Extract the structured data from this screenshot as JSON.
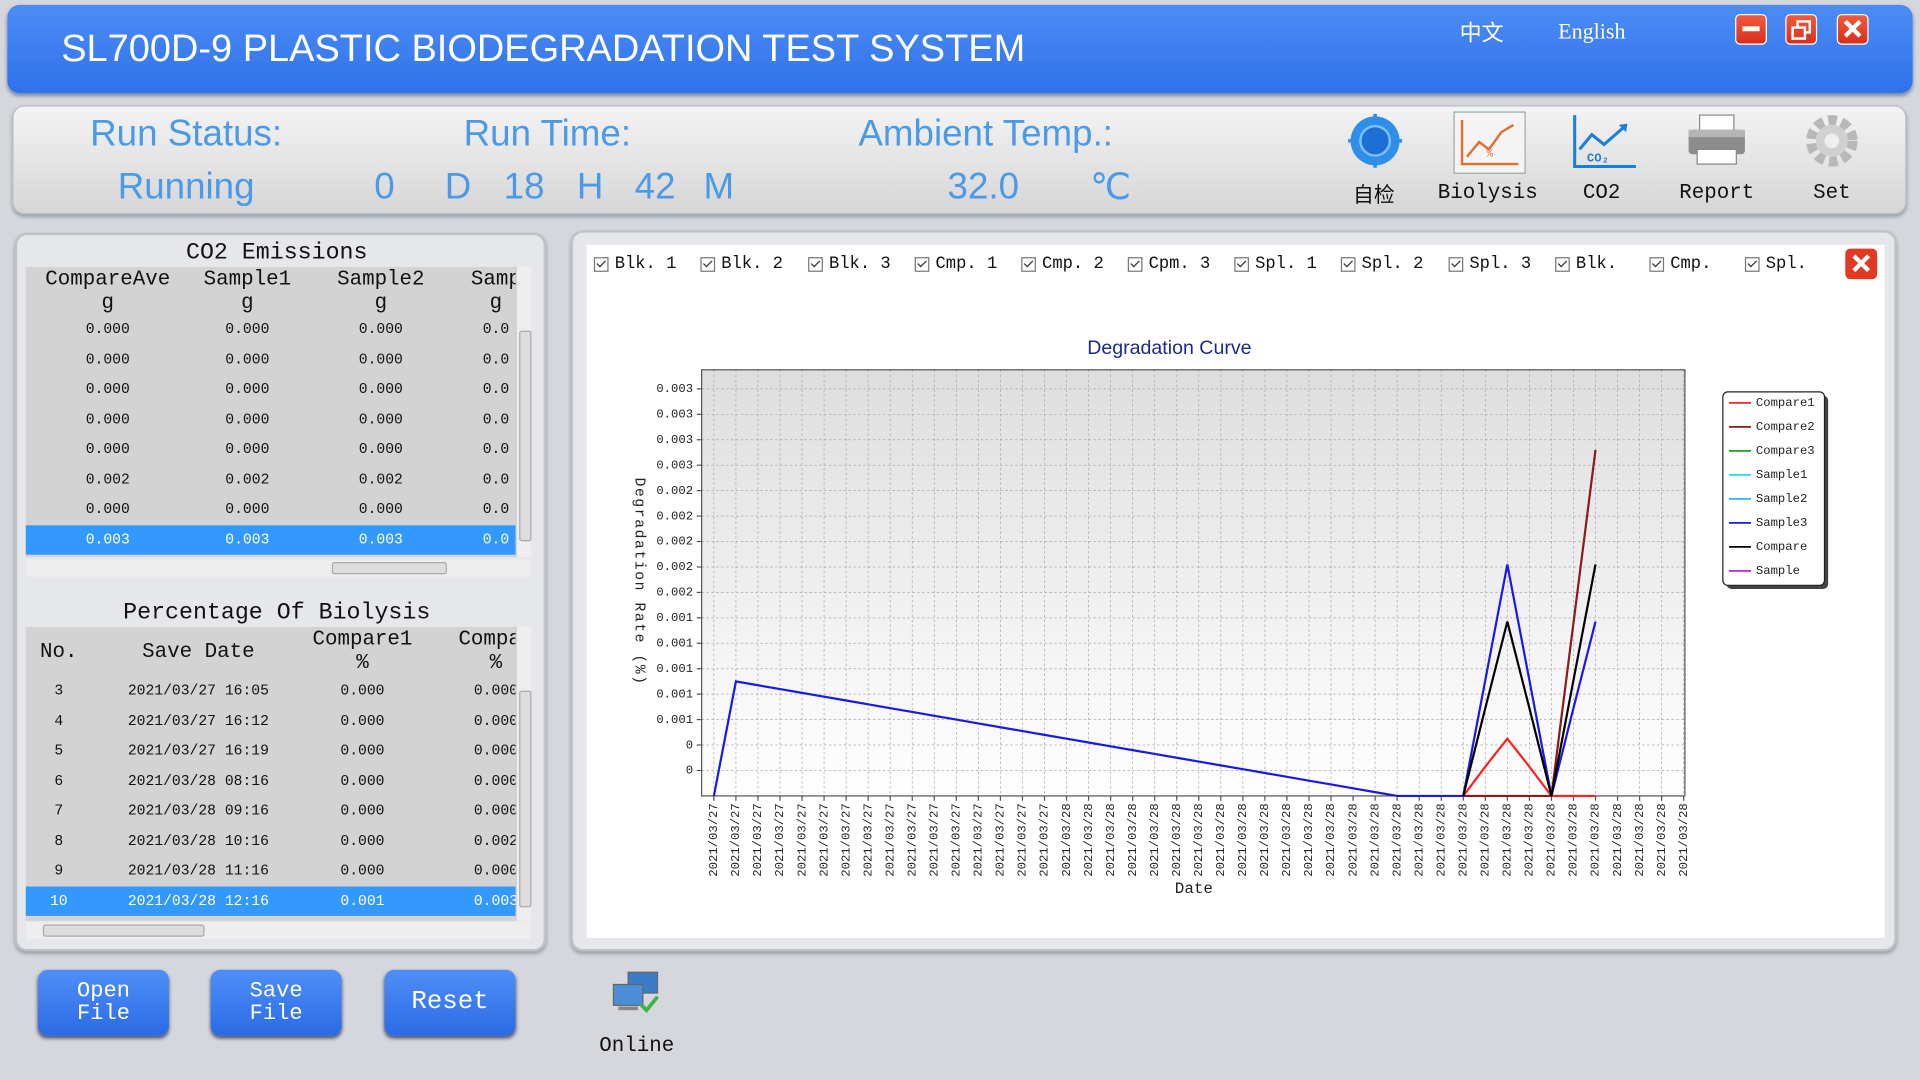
{
  "header": {
    "title": "SL700D-9 PLASTIC BIODEGRADATION TEST SYSTEM",
    "languages": [
      "中文",
      "English"
    ]
  },
  "status": {
    "run_status_label": "Run Status:",
    "run_status": "Running",
    "run_time_label": "Run Time:",
    "run_time": [
      "0",
      "D",
      "18",
      "H",
      "42",
      "M"
    ],
    "ambient_temp_label": "Ambient Temp.:",
    "ambient_temp": "32.0",
    "temp_unit": "℃"
  },
  "toolbar": [
    "自检",
    "Biolysis",
    "CO2",
    "Report",
    "Set"
  ],
  "co2_table": {
    "title": "CO2 Emissions",
    "columns": [
      {
        "name": "CompareAve",
        "unit": "g"
      },
      {
        "name": "Sample1",
        "unit": "g"
      },
      {
        "name": "Sample2",
        "unit": "g"
      },
      {
        "name": "Samp",
        "unit": "g"
      }
    ],
    "rows": [
      [
        "0.000",
        "0.000",
        "0.000",
        "0.0"
      ],
      [
        "0.000",
        "0.000",
        "0.000",
        "0.0"
      ],
      [
        "0.000",
        "0.000",
        "0.000",
        "0.0"
      ],
      [
        "0.000",
        "0.000",
        "0.000",
        "0.0"
      ],
      [
        "0.000",
        "0.000",
        "0.000",
        "0.0"
      ],
      [
        "0.002",
        "0.002",
        "0.002",
        "0.0"
      ],
      [
        "0.000",
        "0.000",
        "0.000",
        "0.0"
      ],
      [
        "0.003",
        "0.003",
        "0.003",
        "0.0"
      ]
    ],
    "selected_row": 7
  },
  "biolysis_table": {
    "title": "Percentage Of Biolysis",
    "columns": [
      {
        "name": "No."
      },
      {
        "name": "Save Date"
      },
      {
        "name": "Compare1",
        "unit": "%"
      },
      {
        "name": "Compar",
        "unit": "%"
      }
    ],
    "rows": [
      [
        "3",
        "2021/03/27 16:05",
        "0.000",
        "0.000"
      ],
      [
        "4",
        "2021/03/27 16:12",
        "0.000",
        "0.000"
      ],
      [
        "5",
        "2021/03/27 16:19",
        "0.000",
        "0.000"
      ],
      [
        "6",
        "2021/03/28 08:16",
        "0.000",
        "0.000"
      ],
      [
        "7",
        "2021/03/28 09:16",
        "0.000",
        "0.000"
      ],
      [
        "8",
        "2021/03/28 10:16",
        "0.000",
        "0.002"
      ],
      [
        "9",
        "2021/03/28 11:16",
        "0.000",
        "0.000"
      ],
      [
        "10",
        "2021/03/28 12:16",
        "0.001",
        "0.003"
      ]
    ],
    "selected_row": 7
  },
  "buttons": [
    "Open File",
    "Save File",
    "Reset",
    "Online"
  ],
  "curve_filters": [
    "Blk. 1",
    "Blk. 2",
    "Blk. 3",
    "Cmp. 1",
    "Cmp. 2",
    "Cpm. 3",
    "Spl. 1",
    "Spl. 2",
    "Spl. 3",
    "Blk.",
    "Cmp.",
    "Spl."
  ],
  "chart_data": {
    "type": "line",
    "title": "Degradation Curve",
    "x_label": "Date",
    "y_label": "Degradation Rate (%)",
    "grid": true,
    "legend": "right",
    "categories": [
      "2021/03/27",
      "2021/03/27",
      "2021/03/27",
      "2021/03/27",
      "2021/03/27",
      "2021/03/27",
      "2021/03/27",
      "2021/03/27",
      "2021/03/27",
      "2021/03/27",
      "2021/03/27",
      "2021/03/27",
      "2021/03/27",
      "2021/03/27",
      "2021/03/27",
      "2021/03/27",
      "2021/03/28",
      "2021/03/28",
      "2021/03/28",
      "2021/03/28",
      "2021/03/28",
      "2021/03/28",
      "2021/03/28",
      "2021/03/28",
      "2021/03/28",
      "2021/03/28",
      "2021/03/28",
      "2021/03/28",
      "2021/03/28",
      "2021/03/28",
      "2021/03/28",
      "2021/03/28",
      "2021/03/28",
      "2021/03/28",
      "2021/03/28",
      "2021/03/28",
      "2021/03/28",
      "2021/03/28",
      "2021/03/28",
      "2021/03/28",
      "2021/03/28",
      "2021/03/28",
      "2021/03/28",
      "2021/03/28",
      "2021/03/28"
    ],
    "ylim": [
      0,
      0.00335
    ],
    "yticks": [
      {
        "value": 0.0002,
        "label": "0"
      },
      {
        "value": 0.0004,
        "label": "0"
      },
      {
        "value": 0.0006,
        "label": "0.001"
      },
      {
        "value": 0.0008,
        "label": "0.001"
      },
      {
        "value": 0.001,
        "label": "0.001"
      },
      {
        "value": 0.0012,
        "label": "0.001"
      },
      {
        "value": 0.0014,
        "label": "0.001"
      },
      {
        "value": 0.0016,
        "label": "0.002"
      },
      {
        "value": 0.0018,
        "label": "0.002"
      },
      {
        "value": 0.002,
        "label": "0.002"
      },
      {
        "value": 0.0022,
        "label": "0.002"
      },
      {
        "value": 0.0024,
        "label": "0.002"
      },
      {
        "value": 0.0026,
        "label": "0.003"
      },
      {
        "value": 0.0028,
        "label": "0.003"
      },
      {
        "value": 0.003,
        "label": "0.003"
      },
      {
        "value": 0.0032,
        "label": "0.003"
      }
    ],
    "series": [
      {
        "name": "Compare1",
        "color": "#ff2020",
        "values": [
          null,
          null,
          null,
          null,
          null,
          null,
          null,
          null,
          null,
          null,
          null,
          null,
          null,
          null,
          null,
          null,
          null,
          null,
          null,
          null,
          null,
          null,
          null,
          null,
          null,
          null,
          null,
          null,
          null,
          null,
          null,
          null,
          null,
          null,
          0,
          0.00023,
          0.00045,
          0.00023,
          0,
          0,
          0,
          null,
          null,
          null,
          null
        ]
      },
      {
        "name": "Compare2",
        "color": "#8b1a1a",
        "values": [
          null,
          null,
          null,
          null,
          null,
          null,
          null,
          null,
          null,
          null,
          null,
          null,
          null,
          null,
          null,
          null,
          null,
          null,
          null,
          null,
          null,
          null,
          null,
          null,
          null,
          null,
          null,
          null,
          null,
          null,
          null,
          null,
          null,
          null,
          0,
          0,
          0,
          0,
          0,
          0.00136,
          0.00272,
          null,
          null,
          null,
          null
        ]
      },
      {
        "name": "Compare3",
        "color": "#20a020",
        "values": [
          null,
          null,
          null,
          null,
          null,
          null,
          null,
          null,
          null,
          null,
          null,
          null,
          null,
          null,
          null,
          null,
          null,
          null,
          null,
          null,
          null,
          null,
          null,
          null,
          null,
          null,
          null,
          null,
          null,
          null,
          null,
          null,
          null,
          null,
          null,
          null,
          null,
          null,
          null,
          null,
          null,
          null,
          null,
          null,
          null
        ]
      },
      {
        "name": "Sample1",
        "color": "#20e0e0",
        "values": [
          null,
          null,
          null,
          null,
          null,
          null,
          null,
          null,
          null,
          null,
          null,
          null,
          null,
          null,
          null,
          null,
          null,
          null,
          null,
          null,
          null,
          null,
          null,
          null,
          null,
          null,
          null,
          null,
          null,
          null,
          null,
          null,
          null,
          null,
          null,
          null,
          null,
          null,
          null,
          null,
          null,
          null,
          null,
          null,
          null
        ]
      },
      {
        "name": "Sample2",
        "color": "#30b0ff",
        "values": [
          null,
          null,
          null,
          null,
          null,
          null,
          null,
          null,
          null,
          null,
          null,
          null,
          null,
          null,
          null,
          null,
          null,
          null,
          null,
          null,
          null,
          null,
          null,
          null,
          null,
          null,
          null,
          null,
          null,
          null,
          null,
          null,
          null,
          null,
          null,
          null,
          null,
          null,
          null,
          null,
          null,
          null,
          null,
          null,
          null
        ]
      },
      {
        "name": "Sample3",
        "color": "#1a1ae6",
        "values": [
          0,
          0.0009,
          0.00087,
          0.00084,
          0.00081,
          0.00078,
          0.00075,
          0.00072,
          0.00069,
          0.00066,
          0.00063,
          0.0006,
          0.00057,
          0.00054,
          0.00051,
          0.00048,
          0.00045,
          0.00042,
          0.00039,
          0.00036,
          0.00033,
          0.0003,
          0.00027,
          0.00024,
          0.00021,
          0.00018,
          0.00015,
          0.00012,
          9e-05,
          6e-05,
          3e-05,
          0,
          0,
          0,
          0,
          0.00091,
          0.00182,
          0.00091,
          0,
          0.00069,
          0.00137,
          null,
          null,
          null,
          null
        ]
      },
      {
        "name": "Compare",
        "color": "#000000",
        "values": [
          null,
          null,
          null,
          null,
          null,
          null,
          null,
          null,
          null,
          null,
          null,
          null,
          null,
          null,
          null,
          null,
          null,
          null,
          null,
          null,
          null,
          null,
          null,
          null,
          null,
          null,
          null,
          null,
          null,
          null,
          null,
          null,
          null,
          null,
          0,
          0.00069,
          0.00137,
          0.00069,
          0,
          0.00091,
          0.00182,
          null,
          null,
          null,
          null
        ]
      },
      {
        "name": "Sample",
        "color": "#c020e0",
        "values": [
          null,
          null,
          null,
          null,
          null,
          null,
          null,
          null,
          null,
          null,
          null,
          null,
          null,
          null,
          null,
          null,
          null,
          null,
          null,
          null,
          null,
          null,
          null,
          null,
          null,
          null,
          null,
          null,
          null,
          null,
          null,
          null,
          null,
          null,
          null,
          null,
          null,
          null,
          null,
          null,
          null,
          null,
          null,
          null,
          null
        ]
      }
    ]
  }
}
